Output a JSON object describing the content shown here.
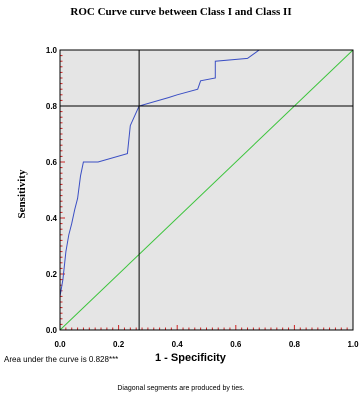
{
  "chart_data": {
    "type": "line",
    "title": "ROC Curve curve between Class I and Class II",
    "xlabel": "1 - Specificity",
    "ylabel": "Sensitivity",
    "xlim": [
      0,
      1
    ],
    "ylim": [
      0,
      1
    ],
    "x_ticks": [
      "0.0",
      "0.2",
      "0.4",
      "0.6",
      "0.8",
      "1.0"
    ],
    "y_ticks": [
      "0.0",
      "0.2",
      "0.4",
      "0.6",
      "0.8",
      "1.0"
    ],
    "grid": false,
    "series": [
      {
        "color": "#3b4fc4",
        "x": [
          0.0,
          0.0,
          0.01,
          0.02,
          0.03,
          0.04,
          0.05,
          0.06,
          0.07,
          0.08,
          0.09,
          0.13,
          0.23,
          0.24,
          0.27,
          0.37,
          0.4,
          0.47,
          0.48,
          0.53,
          0.53,
          0.64,
          0.68,
          0.71,
          1.0
        ],
        "y": [
          0.0,
          0.12,
          0.18,
          0.28,
          0.34,
          0.38,
          0.43,
          0.47,
          0.55,
          0.6,
          0.6,
          0.6,
          0.63,
          0.73,
          0.8,
          0.83,
          0.84,
          0.86,
          0.89,
          0.9,
          0.96,
          0.97,
          1.0,
          1.0,
          1.0
        ]
      },
      {
        "color": "#3cc43c",
        "x": [
          0,
          1
        ],
        "y": [
          0,
          1
        ]
      }
    ],
    "reference_lines": {
      "x": 0.27,
      "y": 0.8,
      "color": "#000000"
    },
    "plot_background": "#e5e5e5",
    "tick_color": "#cc2222"
  },
  "annotation": "Area under the curve is 0.828***",
  "footnote": "Diagonal segments are produced by ties."
}
